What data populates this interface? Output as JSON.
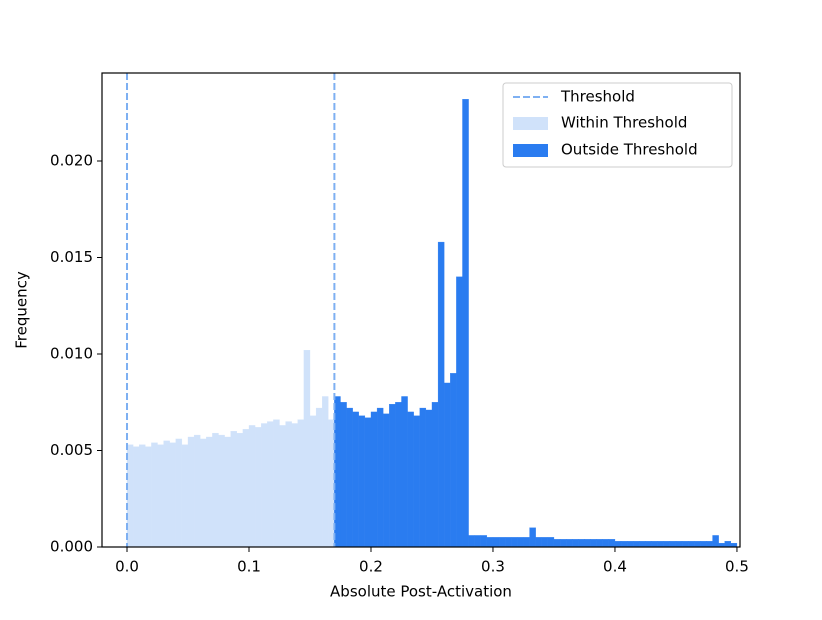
{
  "chart_data": {
    "type": "histogram",
    "xlabel": "Absolute Post-Activation",
    "ylabel": "Frequency",
    "xlim": [
      -0.0205,
      0.5025
    ],
    "ylim": [
      0,
      0.02456
    ],
    "xticks": [
      {
        "value": 0,
        "label": "0.0"
      },
      0.1,
      0.2,
      0.3,
      0.4,
      0.5
    ],
    "yticks": [
      {
        "value": 0,
        "label": "0.000"
      },
      {
        "value": 0.005,
        "label": "0.005"
      },
      {
        "value": 0.01,
        "label": "0.010"
      },
      {
        "value": 0.015,
        "label": "0.015"
      },
      {
        "value": 0.02,
        "label": "0.020"
      }
    ],
    "legend": "upper right",
    "threshold": {
      "name": "Threshold",
      "color": "#7eb0f2",
      "values": [
        0,
        0.17
      ]
    },
    "series": [
      {
        "name": "Within Threshold",
        "color": "#d0e2fa",
        "bins": [
          0,
          0.005,
          0.01,
          0.015,
          0.02,
          0.025,
          0.03,
          0.035,
          0.04,
          0.045,
          0.05,
          0.055,
          0.06,
          0.065,
          0.07,
          0.075,
          0.08,
          0.085,
          0.09,
          0.095,
          0.1,
          0.105,
          0.11,
          0.115,
          0.12,
          0.125,
          0.13,
          0.135,
          0.14,
          0.145,
          0.15,
          0.155,
          0.16,
          0.165,
          0.17
        ],
        "values": [
          0.0053,
          0.0052,
          0.0053,
          0.0052,
          0.0054,
          0.0053,
          0.0055,
          0.0054,
          0.0056,
          0.0053,
          0.0057,
          0.0058,
          0.0056,
          0.0057,
          0.0059,
          0.0058,
          0.0057,
          0.006,
          0.0059,
          0.0061,
          0.0063,
          0.0062,
          0.0064,
          0.0065,
          0.0066,
          0.0063,
          0.0065,
          0.0064,
          0.0066,
          0.0102,
          0.0068,
          0.0072,
          0.0078,
          0.0066
        ]
      },
      {
        "name": "Outside Threshold",
        "color": "#2a7cf0",
        "bins": [
          0.17,
          0.175,
          0.18,
          0.185,
          0.19,
          0.195,
          0.2,
          0.205,
          0.21,
          0.215,
          0.22,
          0.225,
          0.23,
          0.235,
          0.24,
          0.245,
          0.25,
          0.255,
          0.26,
          0.265,
          0.27,
          0.275,
          0.28,
          0.285,
          0.29,
          0.295,
          0.3,
          0.305,
          0.31,
          0.315,
          0.32,
          0.325,
          0.33,
          0.335,
          0.34,
          0.345,
          0.35,
          0.355,
          0.36,
          0.365,
          0.37,
          0.375,
          0.38,
          0.385,
          0.39,
          0.395,
          0.4,
          0.405,
          0.41,
          0.415,
          0.42,
          0.425,
          0.43,
          0.435,
          0.44,
          0.445,
          0.45,
          0.455,
          0.46,
          0.465,
          0.47,
          0.475,
          0.48,
          0.485,
          0.49,
          0.495,
          0.5
        ],
        "values": [
          0.0078,
          0.0075,
          0.0072,
          0.007,
          0.0068,
          0.0067,
          0.007,
          0.0072,
          0.0069,
          0.0074,
          0.0075,
          0.0078,
          0.007,
          0.0068,
          0.0072,
          0.0071,
          0.0075,
          0.0158,
          0.0085,
          0.009,
          0.014,
          0.0232,
          0.0006,
          0.0006,
          0.0006,
          0.0005,
          0.0005,
          0.0005,
          0.0005,
          0.0005,
          0.0005,
          0.0005,
          0.001,
          0.0005,
          0.0005,
          0.0005,
          0.0004,
          0.0004,
          0.0004,
          0.0004,
          0.0004,
          0.0004,
          0.0004,
          0.0004,
          0.0004,
          0.0004,
          0.0003,
          0.0003,
          0.0003,
          0.0003,
          0.0003,
          0.0003,
          0.0003,
          0.0003,
          0.0003,
          0.0003,
          0.0003,
          0.0003,
          0.0003,
          0.0003,
          0.0003,
          0.0003,
          0.0006,
          0.0002,
          0.0003,
          0.0002
        ]
      }
    ]
  }
}
